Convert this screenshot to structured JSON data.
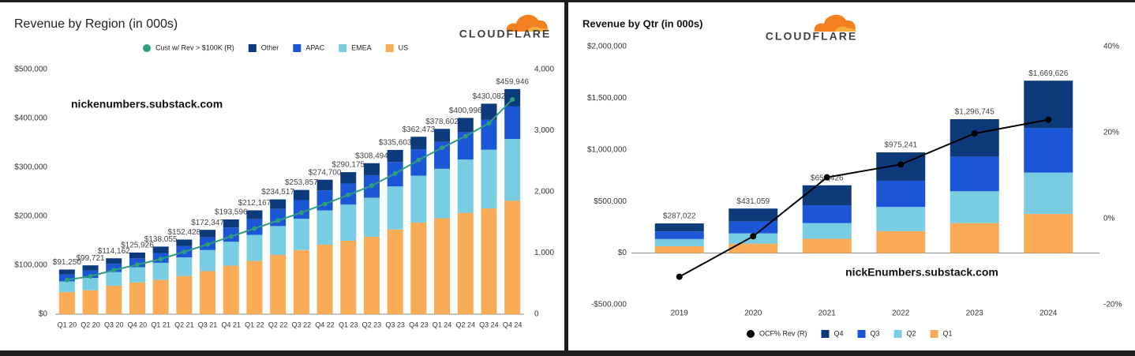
{
  "chart_data": [
    {
      "type": "bar",
      "stacked": true,
      "title": "Revenue by Region (in 000s)",
      "logo": "CLOUDFLARE",
      "annotation": "nickenumbers.substack.com",
      "categories": [
        "Q1 20",
        "Q2 20",
        "Q3 20",
        "Q4 20",
        "Q1 21",
        "Q2 21",
        "Q3 21",
        "Q4 21",
        "Q1 22",
        "Q2 22",
        "Q3 22",
        "Q4 22",
        "Q1 23",
        "Q2 23",
        "Q3 23",
        "Q4 23",
        "Q1 24",
        "Q2 24",
        "Q3 24",
        "Q4 24"
      ],
      "series": [
        {
          "name": "Cust w/ Rev > $100K (R)",
          "color": "#2e9e7e",
          "axis": "y2",
          "values": [
            560,
            620,
            720,
            810,
            900,
            1020,
            1140,
            1270,
            1400,
            1530,
            1660,
            1800,
            1950,
            2100,
            2300,
            2520,
            2720,
            2910,
            3120,
            3510
          ]
        },
        {
          "name": "US",
          "color": "#f9ac55",
          "values": [
            45000,
            49000,
            58000,
            65000,
            70000,
            78000,
            88000,
            99000,
            109000,
            121000,
            131000,
            142000,
            150000,
            158000,
            173000,
            187000,
            196000,
            207000,
            216000,
            232000
          ]
        },
        {
          "name": "EMEA",
          "color": "#79cde3",
          "values": [
            22000,
            25000,
            28000,
            31000,
            35000,
            38000,
            43000,
            49000,
            53000,
            59000,
            64000,
            70000,
            74000,
            80000,
            88000,
            96000,
            101000,
            109000,
            120000,
            126000
          ]
        },
        {
          "name": "APAC",
          "color": "#1a56d6",
          "values": [
            14000,
            15000,
            17000,
            18000,
            20000,
            23000,
            26000,
            29000,
            32000,
            35000,
            38000,
            41000,
            43000,
            46000,
            50000,
            54000,
            55000,
            56000,
            61000,
            67000
          ]
        },
        {
          "name": "Other",
          "color": "#0d3a7a",
          "values": [
            10250,
            10721,
            11162,
            11926,
            13055,
            13428,
            15347,
            16596,
            18167,
            19517,
            20857,
            21700,
            23175,
            24494,
            24603,
            25473,
            26602,
            28996,
            33082,
            34946
          ]
        }
      ],
      "totals": {
        "values": [
          91250,
          99721,
          114162,
          125926,
          138055,
          152428,
          172347,
          193596,
          212167,
          234517,
          253857,
          274700,
          290175,
          308494,
          335603,
          362473,
          378602,
          400996,
          430082,
          459946
        ],
        "value_labels": [
          "$91,250",
          "$99,721",
          "$114,162",
          "$125,926",
          "$138,055",
          "$152,428",
          "$172,347",
          "$193,596",
          "$212,167",
          "$234,517",
          "$253,857",
          "$274,700",
          "$290,175",
          "$308,494",
          "$335,603",
          "$362,473",
          "$378,602",
          "$400,996",
          "$430,082",
          "$459,946"
        ]
      },
      "ylim": [
        0,
        500000
      ],
      "yticks": [
        {
          "value": 0,
          "label": "$0"
        },
        {
          "value": 100000,
          "label": "$100,000"
        },
        {
          "value": 200000,
          "label": "$200,000"
        },
        {
          "value": 300000,
          "label": "$300,000"
        },
        {
          "value": 400000,
          "label": "$400,000"
        },
        {
          "value": 500000,
          "label": "$500,000"
        }
      ],
      "y2lim": [
        0,
        4000
      ],
      "y2ticks": [
        0,
        {
          "value": 1000,
          "label": "1,000"
        },
        {
          "value": 2000,
          "label": "2,000"
        },
        {
          "value": 3000,
          "label": "3,000"
        },
        {
          "value": 4000,
          "label": "4,000"
        }
      ],
      "grid": false,
      "legend": "top"
    },
    {
      "type": "bar",
      "stacked": true,
      "title": "Revenue by Qtr (in 000s)",
      "logo": "CLOUDFLARE",
      "annotation": "nickEnumbers.substack.com",
      "categories": [
        "2019",
        "2020",
        "2021",
        "2022",
        "2023",
        "2024"
      ],
      "series": [
        {
          "name": "OCF% Rev (R)",
          "color": "#000000",
          "axis": "y2",
          "values": [
            -13.5,
            -4.1,
            9.6,
            12.6,
            19.8,
            23.0
          ]
        },
        {
          "name": "Q1",
          "color": "#f9ac55",
          "values": [
            66528,
            91250,
            138055,
            212167,
            290175,
            378602
          ]
        },
        {
          "name": "Q2",
          "color": "#79cde3",
          "values": [
            69503,
            99721,
            152428,
            234517,
            308494,
            400996
          ]
        },
        {
          "name": "Q3",
          "color": "#1a56d6",
          "values": [
            73761,
            114162,
            172347,
            253857,
            335603,
            430082
          ]
        },
        {
          "name": "Q4",
          "color": "#0d3a7a",
          "values": [
            77230,
            125926,
            193596,
            274700,
            362473,
            459946
          ]
        }
      ],
      "totals": {
        "values": [
          287022,
          431059,
          656426,
          975241,
          1296745,
          1669626
        ],
        "value_labels": [
          "$287,022",
          "$431,059",
          "$656,426",
          "$975,241",
          "$1,296,745",
          "$1,669,626"
        ]
      },
      "ylim": [
        -500000,
        2000000
      ],
      "yticks": [
        {
          "value": -500000,
          "label": "-$500,000"
        },
        {
          "value": 0,
          "label": "$0"
        },
        {
          "value": 500000,
          "label": "$500,000"
        },
        {
          "value": 1000000,
          "label": "$1,000,000"
        },
        {
          "value": 1500000,
          "label": "$1,500,000"
        },
        {
          "value": 2000000,
          "label": "$2,000,000"
        }
      ],
      "y2lim": [
        -20,
        40
      ],
      "y2ticks": [
        {
          "value": -20,
          "label": "-20%"
        },
        {
          "value": 0,
          "label": "0%"
        },
        {
          "value": 20,
          "label": "20%"
        },
        {
          "value": 40,
          "label": "40%"
        }
      ],
      "grid": false,
      "legend": "bottom"
    }
  ]
}
